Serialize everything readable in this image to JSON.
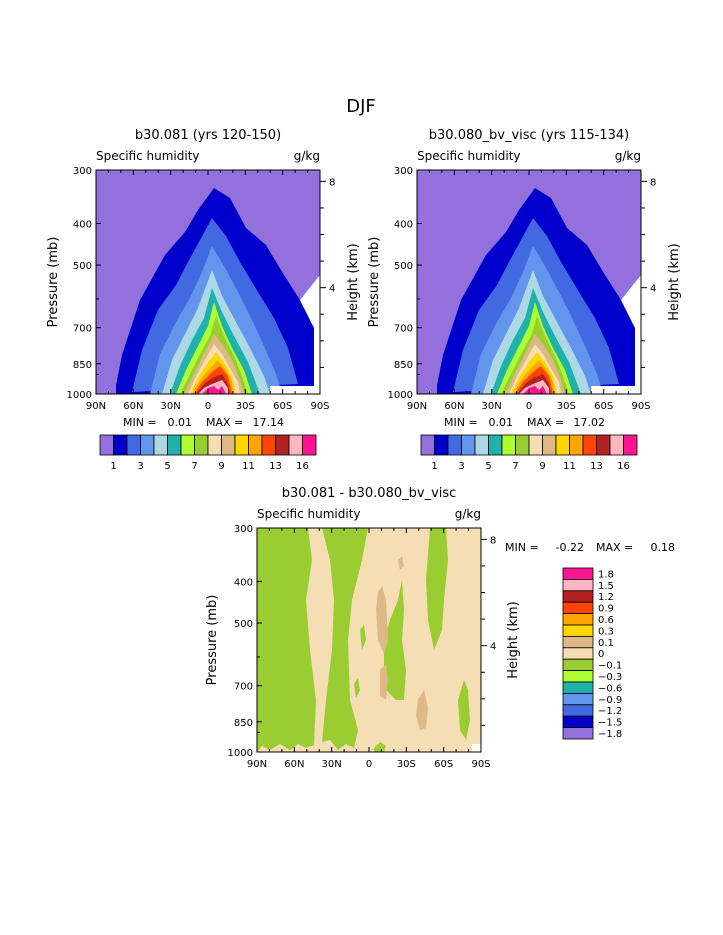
{
  "page_title": "DJF",
  "colors": {
    "purple": "#9370DB",
    "navy": "#0000CD",
    "royal": "#4169E1",
    "cornflower": "#6495ED",
    "lightblue": "#ADD8E6",
    "teal": "#20B2AA",
    "lightgreen": "#ADFF2F",
    "olive": "#9ACD32",
    "tan": "#DEB887",
    "wheat": "#F5DEB3",
    "gold": "#FFD700",
    "orange": "#FFA500",
    "orangered": "#FF4500",
    "brown": "#B22222",
    "pink": "#FFB6C1",
    "hotpink": "#FF1493"
  },
  "chart_data": [
    {
      "type": "contour",
      "title": "b30.081 (yrs 120-150)",
      "subtitle_left": "Specific humidity",
      "subtitle_right": "g/kg",
      "xlabel": "",
      "ylabel": "Pressure (mb)",
      "ylabel_right": "Height (km)",
      "x_ticks": [
        "90N",
        "60N",
        "30N",
        "0",
        "30S",
        "60S",
        "90S"
      ],
      "x_values": [
        90,
        60,
        30,
        0,
        -30,
        -60,
        -90
      ],
      "y_ticks": [
        "300",
        "400",
        "500",
        "700",
        "850",
        "1000"
      ],
      "y_values": [
        300,
        400,
        500,
        700,
        850,
        1000
      ],
      "y_right_ticks": [
        "8",
        "4"
      ],
      "y_right_values": [
        8,
        4
      ],
      "ylim": [
        300,
        1000
      ],
      "min_label": "MIN =",
      "min": "0.01",
      "max_label": "MAX =",
      "max": "17.14",
      "levels": [
        1,
        2,
        3,
        4,
        5,
        6,
        7,
        8,
        9,
        10,
        11,
        12,
        13,
        14,
        16
      ],
      "colorbar_labels": [
        "1",
        "3",
        "5",
        "7",
        "9",
        "11",
        "13",
        "16"
      ]
    },
    {
      "type": "contour",
      "title": "b30.080_bv_visc (yrs 115-134)",
      "subtitle_left": "Specific humidity",
      "subtitle_right": "g/kg",
      "xlabel": "",
      "ylabel": "Pressure (mb)",
      "ylabel_right": "Height (km)",
      "x_ticks": [
        "90N",
        "60N",
        "30N",
        "0",
        "30S",
        "60S",
        "90S"
      ],
      "x_values": [
        90,
        60,
        30,
        0,
        -30,
        -60,
        -90
      ],
      "y_ticks": [
        "300",
        "400",
        "500",
        "700",
        "850",
        "1000"
      ],
      "y_values": [
        300,
        400,
        500,
        700,
        850,
        1000
      ],
      "y_right_ticks": [
        "8",
        "4"
      ],
      "y_right_values": [
        8,
        4
      ],
      "ylim": [
        300,
        1000
      ],
      "min_label": "MIN =",
      "min": "0.01",
      "max_label": "MAX =",
      "max": "17.02",
      "levels": [
        1,
        2,
        3,
        4,
        5,
        6,
        7,
        8,
        9,
        10,
        11,
        12,
        13,
        14,
        16
      ],
      "colorbar_labels": [
        "1",
        "3",
        "5",
        "7",
        "9",
        "11",
        "13",
        "16"
      ]
    },
    {
      "type": "contour",
      "title": "b30.081 - b30.080_bv_visc",
      "subtitle_left": "Specific humidity",
      "subtitle_right": "g/kg",
      "xlabel": "",
      "ylabel": "Pressure (mb)",
      "ylabel_right": "Height (km)",
      "x_ticks": [
        "90N",
        "60N",
        "30N",
        "0",
        "30S",
        "60S",
        "90S"
      ],
      "x_values": [
        90,
        60,
        30,
        0,
        -30,
        -60,
        -90
      ],
      "y_ticks": [
        "300",
        "400",
        "500",
        "700",
        "850",
        "1000"
      ],
      "y_values": [
        300,
        400,
        500,
        700,
        850,
        1000
      ],
      "y_right_ticks": [
        "8",
        "4"
      ],
      "y_right_values": [
        8,
        4
      ],
      "ylim": [
        300,
        1000
      ],
      "min_label": "MIN =",
      "min": "-0.22",
      "max_label": "MAX =",
      "max": "0.18",
      "levels": [
        -1.8,
        -1.5,
        -1.2,
        -0.9,
        -0.6,
        -0.3,
        -0.1,
        0,
        0.1,
        0.3,
        0.6,
        0.9,
        1.2,
        1.5,
        1.8
      ],
      "colorbar_labels": [
        "1.8",
        "1.5",
        "1.2",
        "0.9",
        "0.6",
        "0.3",
        "0.1",
        "0",
        "−0.1",
        "−0.3",
        "−0.6",
        "−0.9",
        "−1.2",
        "−1.5",
        "−1.8"
      ]
    }
  ]
}
